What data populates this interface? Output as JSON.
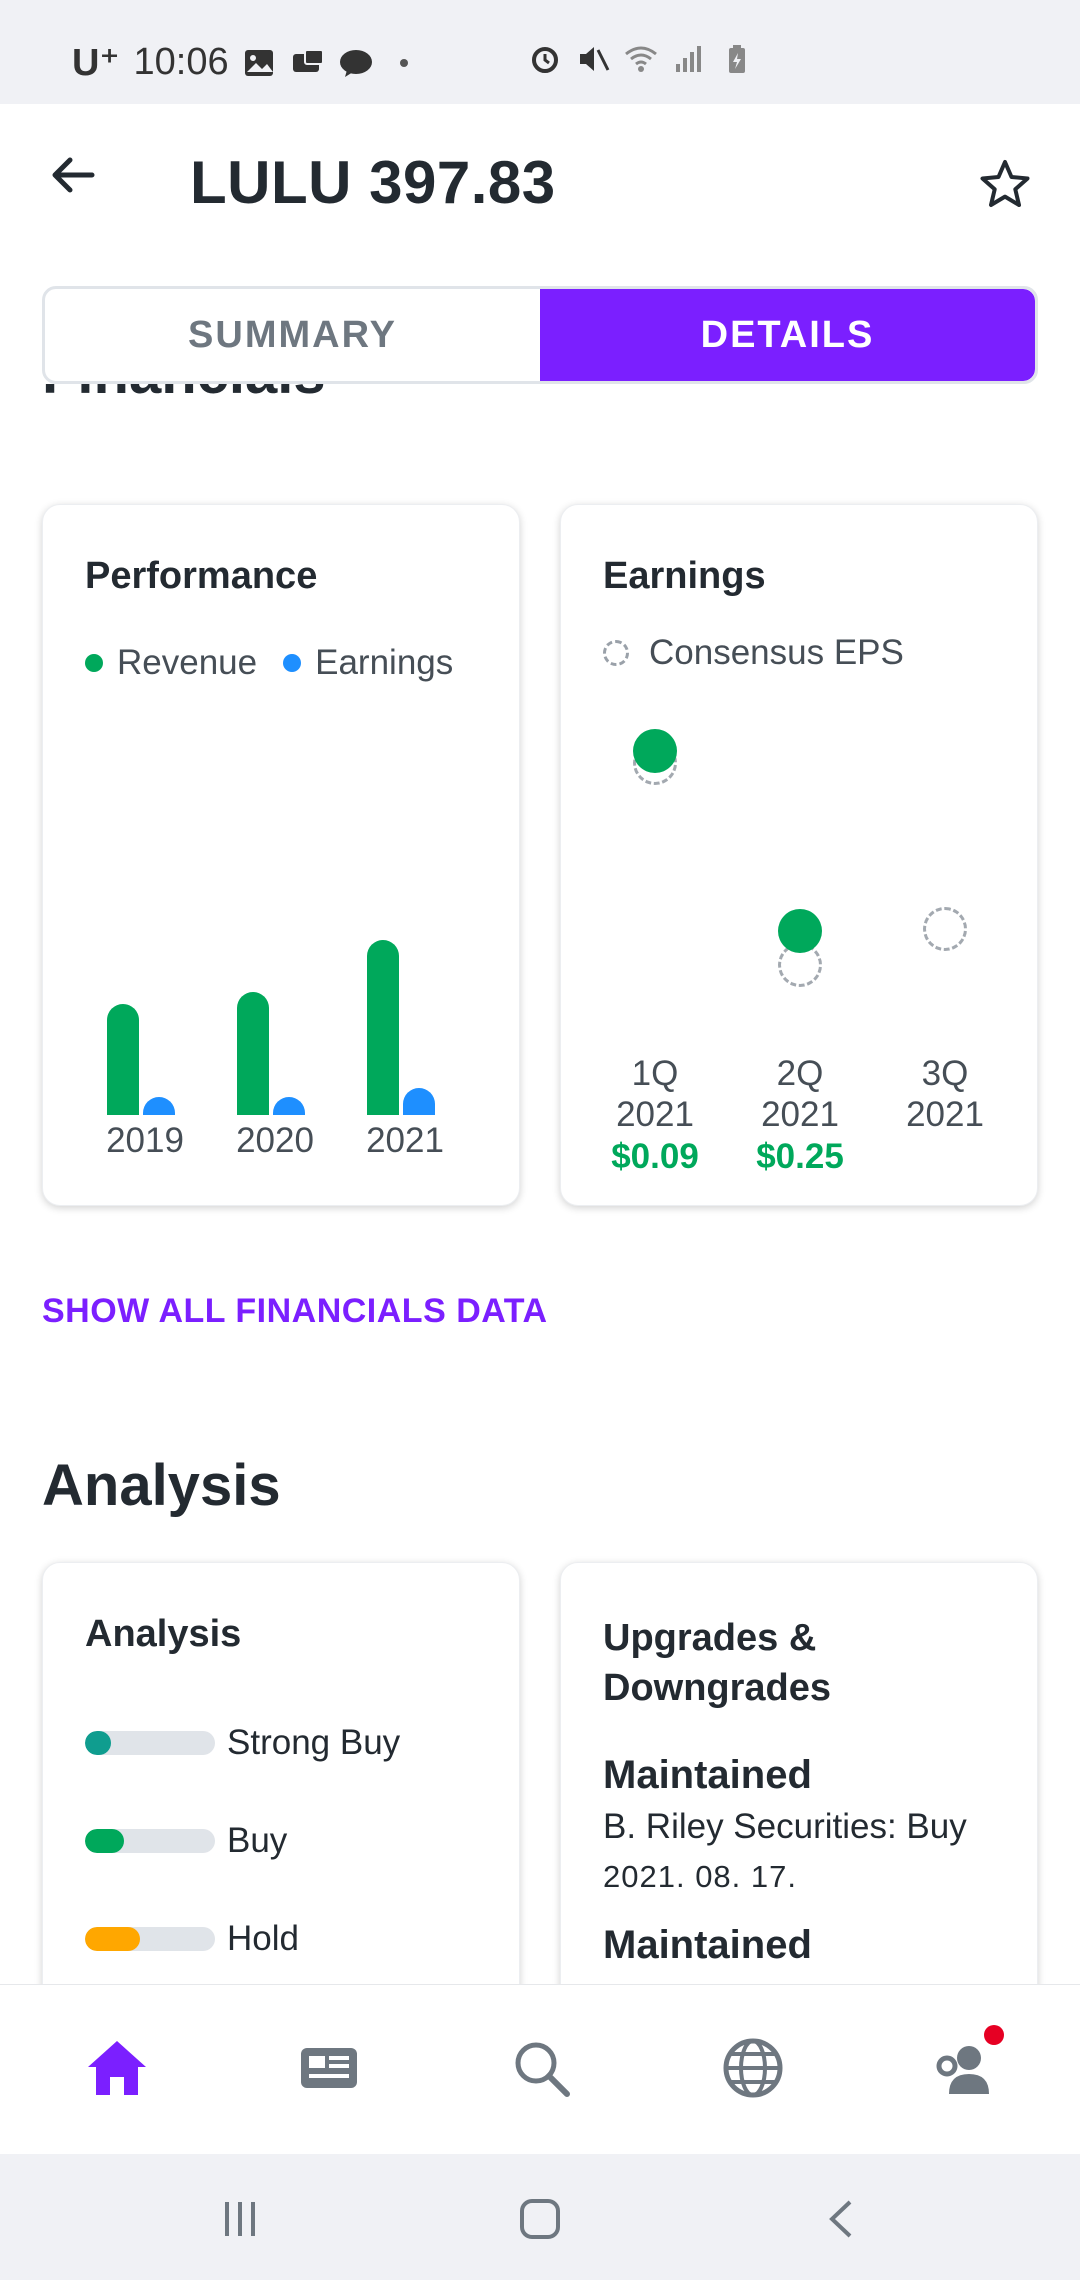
{
  "status_bar": {
    "carrier": "U⁺",
    "time": "10:06"
  },
  "header": {
    "title": "LULU 397.83"
  },
  "tabs": [
    {
      "label": "SUMMARY",
      "active": false
    },
    {
      "label": "DETAILS",
      "active": true
    }
  ],
  "financials": {
    "section_title": "Financials",
    "performance": {
      "title": "Performance",
      "legend": [
        {
          "label": "Revenue",
          "color": "#00a85b"
        },
        {
          "label": "Earnings",
          "color": "#1e8fff"
        }
      ]
    },
    "earnings": {
      "title": "Earnings",
      "legend_label": "Consensus EPS",
      "quarters": [
        {
          "quarter": "1Q",
          "year": "2021",
          "actual": "$0.09"
        },
        {
          "quarter": "2Q",
          "year": "2021",
          "actual": "$0.25"
        },
        {
          "quarter": "3Q",
          "year": "2021",
          "actual": ""
        }
      ]
    },
    "show_all_link": "SHOW ALL FINANCIALS DATA"
  },
  "chart_data": {
    "type": "bar",
    "categories": [
      "2019",
      "2020",
      "2021"
    ],
    "series": [
      {
        "name": "Revenue",
        "values": [
          3.98,
          4.4,
          6.26
        ]
      },
      {
        "name": "Earnings",
        "values": [
          0.65,
          0.59,
          0.98
        ]
      }
    ],
    "title": "Performance",
    "xlabel": "",
    "ylabel": ""
  },
  "analysis": {
    "section_title": "Analysis",
    "card_title": "Analysis",
    "ratings": [
      {
        "label": "Strong Buy",
        "fill": 0.2,
        "color": "#0f9d8f"
      },
      {
        "label": "Buy",
        "fill": 0.3,
        "color": "#00a85b"
      },
      {
        "label": "Hold",
        "fill": 0.42,
        "color": "#ffa700"
      }
    ],
    "upgrades": {
      "title": "Upgrades & Downgrades",
      "items": [
        {
          "status": "Maintained",
          "firm": "B. Riley Securities: Buy",
          "date": "2021. 08. 17."
        },
        {
          "status": "Maintained",
          "firm": "",
          "date": ""
        }
      ]
    }
  },
  "colors": {
    "accent": "#7b1fff",
    "positive": "#00a85b",
    "earnings_blue": "#1e8fff"
  },
  "icons": {
    "back": "arrow-left-icon",
    "favorite": "star-outline-icon",
    "nav": [
      "home-icon",
      "news-icon",
      "search-icon",
      "globe-icon",
      "profile-settings-icon"
    ]
  }
}
